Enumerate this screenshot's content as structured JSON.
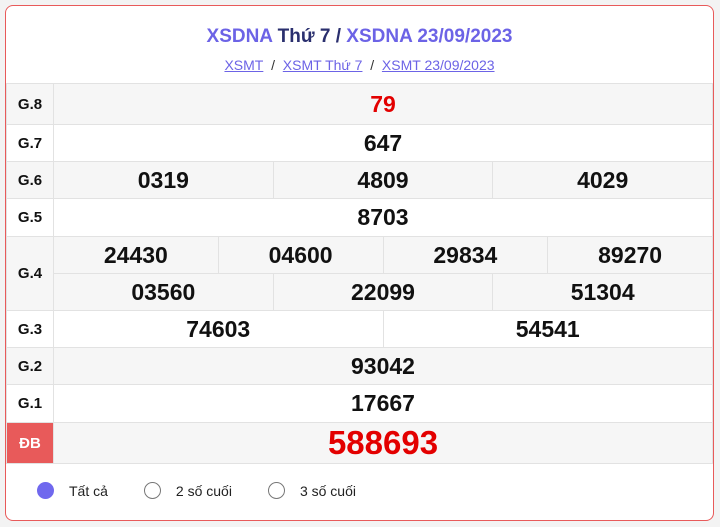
{
  "header": {
    "t1": "XSDNA",
    "t2": "Thứ 7",
    "t3": "/",
    "t4": "XSDNA 23/09/2023"
  },
  "breadcrumb": [
    {
      "label": "XSMT"
    },
    {
      "label": "XSMT Thứ 7"
    },
    {
      "label": "XSMT 23/09/2023"
    }
  ],
  "sep": "/",
  "prizes": {
    "g8": {
      "label": "G.8",
      "nums": [
        "79"
      ]
    },
    "g7": {
      "label": "G.7",
      "nums": [
        "647"
      ]
    },
    "g6": {
      "label": "G.6",
      "nums": [
        "0319",
        "4809",
        "4029"
      ]
    },
    "g5": {
      "label": "G.5",
      "nums": [
        "8703"
      ]
    },
    "g4": {
      "label": "G.4",
      "nums": [
        "24430",
        "04600",
        "29834",
        "89270",
        "03560",
        "22099",
        "51304"
      ]
    },
    "g3": {
      "label": "G.3",
      "nums": [
        "74603",
        "54541"
      ]
    },
    "g2": {
      "label": "G.2",
      "nums": [
        "93042"
      ]
    },
    "g1": {
      "label": "G.1",
      "nums": [
        "17667"
      ]
    },
    "db": {
      "label": "ĐB",
      "nums": [
        "588693"
      ]
    }
  },
  "options": [
    {
      "label": "Tất cả",
      "selected": true
    },
    {
      "label": "2 số cuối",
      "selected": false
    },
    {
      "label": "3 số cuối",
      "selected": false
    }
  ],
  "colors": {
    "accent": "#6c63e6",
    "special": "#e85a5a",
    "red_number": "#e30000"
  }
}
